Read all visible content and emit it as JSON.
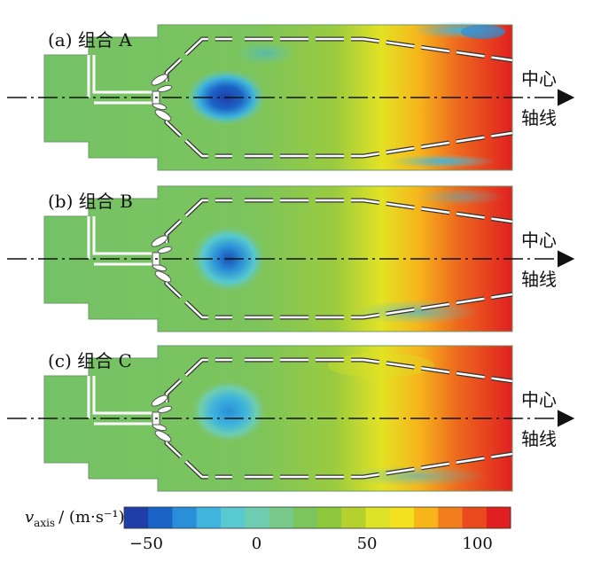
{
  "panels": [
    {
      "label": "(a) 组合 A",
      "axis_label_line1": "中心",
      "axis_label_line2": "轴线"
    },
    {
      "label": "(b) 组合 B",
      "axis_label_line1": "中心",
      "axis_label_line2": "轴线"
    },
    {
      "label": "(c) 组合 C",
      "axis_label_line1": "中心",
      "axis_label_line2": "轴线"
    }
  ],
  "colorbar": {
    "title_var": "v",
    "title_sub": "axis",
    "title_unit": "/ (m·s⁻¹)",
    "ticks": [
      "−50",
      "0",
      "50",
      "100"
    ],
    "tick_values": [
      -50,
      0,
      50,
      100
    ],
    "min": -60,
    "max": 115,
    "colors": [
      "#1f3ea8",
      "#1b63c7",
      "#2a8fd8",
      "#3fb4dc",
      "#57c9cf",
      "#6ecdb1",
      "#78c98a",
      "#7cc45c",
      "#8ec83c",
      "#b5d12e",
      "#dde326",
      "#f3e01f",
      "#f7b41b",
      "#f27d1c",
      "#e84a1d",
      "#e02020"
    ]
  }
}
